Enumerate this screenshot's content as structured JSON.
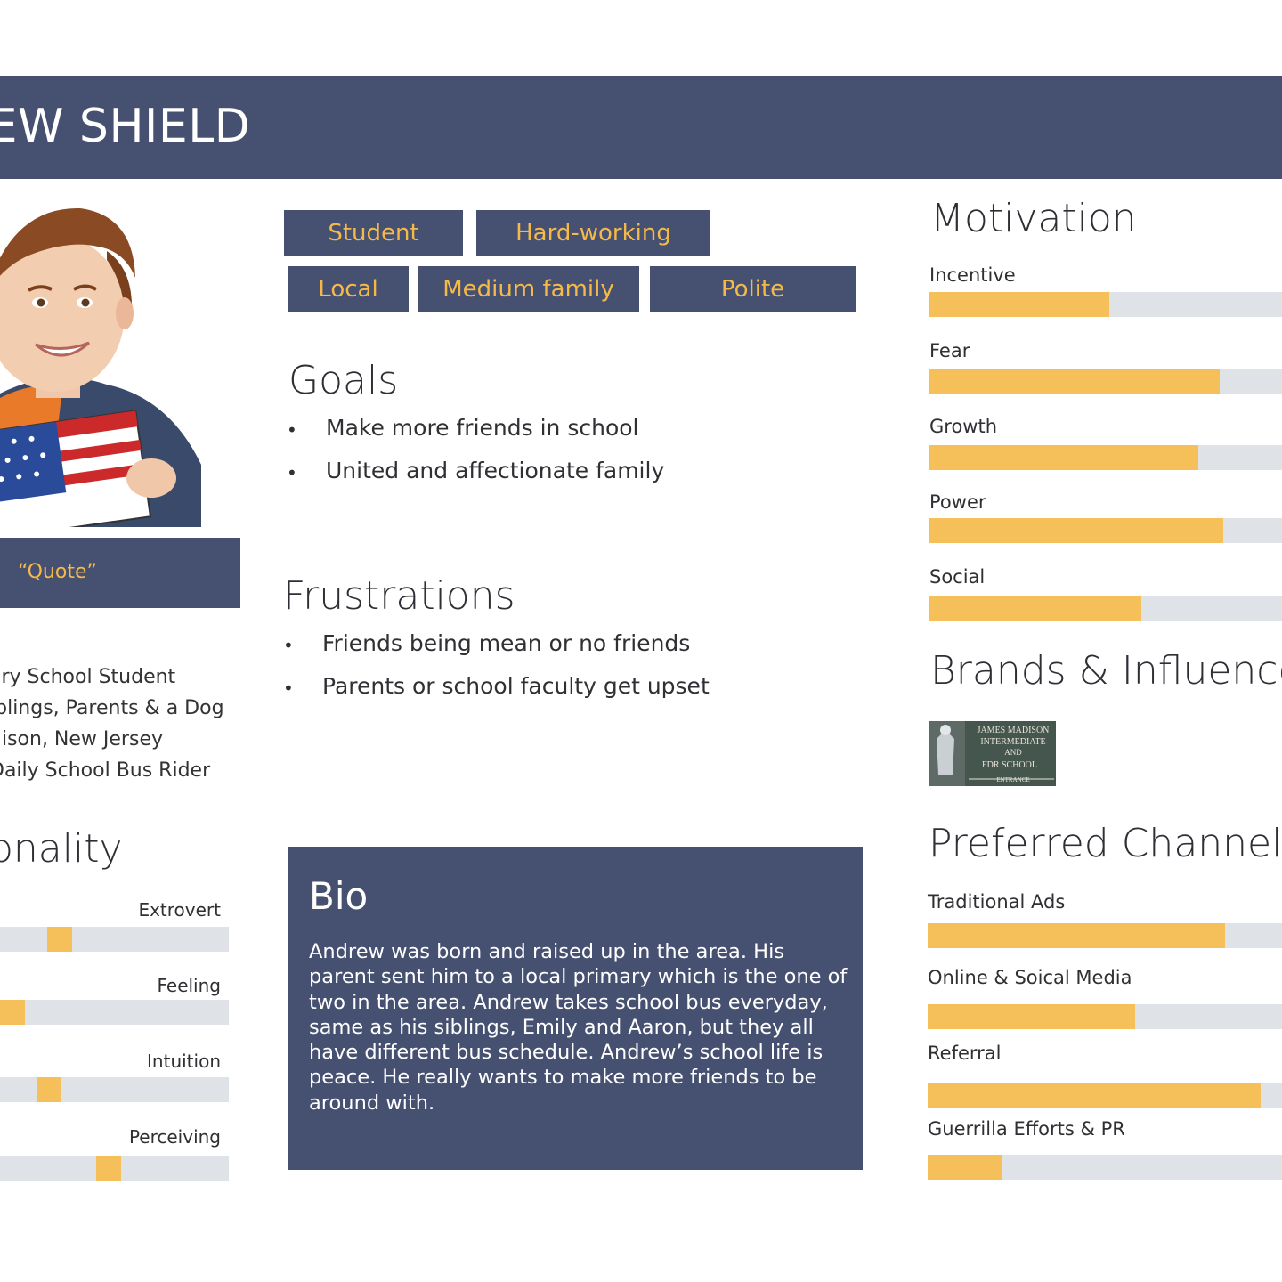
{
  "header": {
    "name": "REW SHIELD"
  },
  "profile": {
    "quote": "“Quote”",
    "info": [
      "ary School Student",
      "iblings, Parents & a Dog",
      "dison, New Jersey",
      " Daily School Bus Rider"
    ]
  },
  "tags": [
    "Student",
    "Hard-working",
    "Local",
    "Medium family",
    "Polite"
  ],
  "goals": {
    "title": "Goals",
    "items": [
      "Make more friends in school",
      "United and affectionate family"
    ]
  },
  "frustrations": {
    "title": "Frustrations",
    "items": [
      "Friends being mean or no friends",
      "Parents or school faculty get upset"
    ]
  },
  "personality": {
    "title": "onality",
    "traits": [
      {
        "label": "Extrovert",
        "level": 0.23
      },
      {
        "label": "Feeling",
        "level": 0.0
      },
      {
        "label": "Intuition",
        "level": 0.18
      },
      {
        "label": "Perceiving",
        "level": 0.47
      }
    ]
  },
  "bio": {
    "title": "Bio",
    "text": "Andrew was born and raised up in the area. His parent sent him to a local primary which is the one of two in the area. Andrew takes school bus everyday, same as his siblings, Emily and Aaron, but they all have different bus schedule. Andrew’s school life is peace. He really wants to make more friends to be around with."
  },
  "motivation": {
    "title": "Motivation",
    "items": [
      {
        "label": "Incentive",
        "level": 0.5
      },
      {
        "label": "Fear",
        "level": 0.81
      },
      {
        "label": "Growth",
        "level": 0.75
      },
      {
        "label": "Power",
        "level": 0.82
      },
      {
        "label": "Social",
        "level": 0.59
      }
    ]
  },
  "brands": {
    "title": "Brands & Influence",
    "sign_text": [
      "JAMES MADISON",
      "INTERMEDIATE",
      "AND",
      "FDR SCHOOL",
      "ENTRANCE"
    ]
  },
  "channels": {
    "title": "Preferred Channel",
    "items": [
      {
        "label": "Traditional Ads",
        "level": 0.83
      },
      {
        "label": "Online & Soical Media",
        "level": 0.58
      },
      {
        "label": "Referral",
        "level": 0.93
      },
      {
        "label": "Guerrilla Efforts & PR",
        "level": 0.21
      }
    ]
  },
  "colors": {
    "navy": "#465070",
    "accent": "#f5bf5a",
    "track": "#dfe2e7"
  }
}
